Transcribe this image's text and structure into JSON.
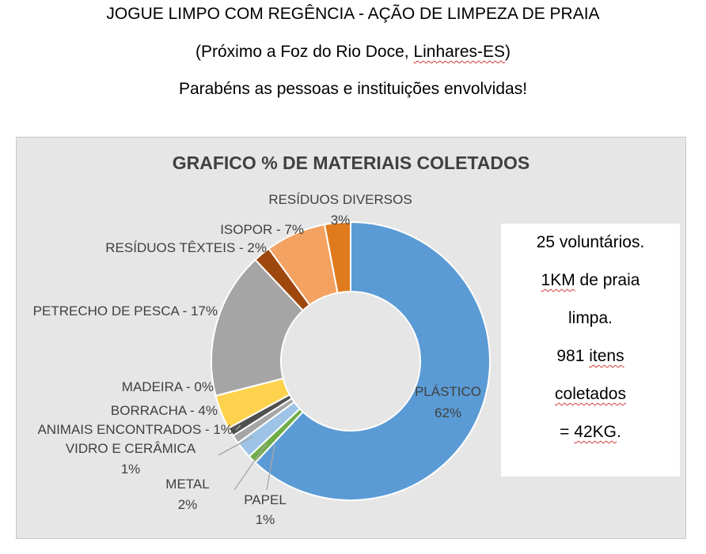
{
  "header": {
    "line1": "JOGUE LIMPO COM REGÊNCIA - AÇÃO DE LIMPEZA DE PRAIA",
    "line2_before": "(Próximo a Foz do Rio Doce, ",
    "line2_underlined": "Linhares-ES",
    "line2_after": ")",
    "line3": "Parabéns as pessoas e instituições envolvidas!"
  },
  "chart_data": {
    "type": "pie",
    "title": "GRAFICO % DE MATERIAIS COLETADOS",
    "categories": [
      "PLÁSTICO",
      "PAPEL",
      "METAL",
      "VIDRO E CERÂMICA",
      "ANIMAIS ENCONTRADOS",
      "BORRACHA",
      "MADEIRA",
      "PETRECHO DE PESCA",
      "RESÍDUOS TÊXTEIS",
      "ISOPOR",
      "RESÍDUOS DIVERSOS"
    ],
    "values": [
      62,
      1,
      2,
      1,
      1,
      4,
      0,
      17,
      2,
      7,
      3
    ],
    "value_labels": [
      "62%",
      "1%",
      "2%",
      "1%",
      "1%",
      "4%",
      "0%",
      "17%",
      "2%",
      "7%",
      "3%"
    ],
    "colors": [
      "#5b9bd5",
      "#70ad47",
      "#9dc3e6",
      "#a5a5a5",
      "#505050",
      "#ffd24d",
      "#4472c4",
      "#a5a5a5",
      "#9e480e",
      "#f4a261",
      "#e07b1d"
    ],
    "hole": true,
    "legend": "none"
  },
  "labels": {
    "plastico_name": "PLÁSTICO",
    "plastico_pct": "62%",
    "papel_name": "PAPEL",
    "papel_pct": "1%",
    "metal_name": "METAL",
    "metal_pct": "2%",
    "vidro_name": "VIDRO E CERÂMICA",
    "vidro_pct": "1%",
    "animais": "ANIMAIS ENCONTRADOS - 1%",
    "borracha": "BORRACHA - 4%",
    "madeira": "MADEIRA - 0%",
    "petrecho": "PETRECHO DE PESCA - 17%",
    "texteis": "RESÍDUOS TÊXTEIS - 2%",
    "isopor": "ISOPOR - 7%",
    "diversos_name": "RESÍDUOS DIVERSOS",
    "diversos_pct": "3%"
  },
  "info_box": {
    "line1": "25 voluntários.",
    "line2_u": "1KM",
    "line2_rest": " de praia",
    "line3": "limpa.",
    "line4_a": "981 ",
    "line4_u": "itens",
    "line5_u": "coletados",
    "line6_a": "= ",
    "line6_u": "42KG",
    "line6_b": "."
  }
}
